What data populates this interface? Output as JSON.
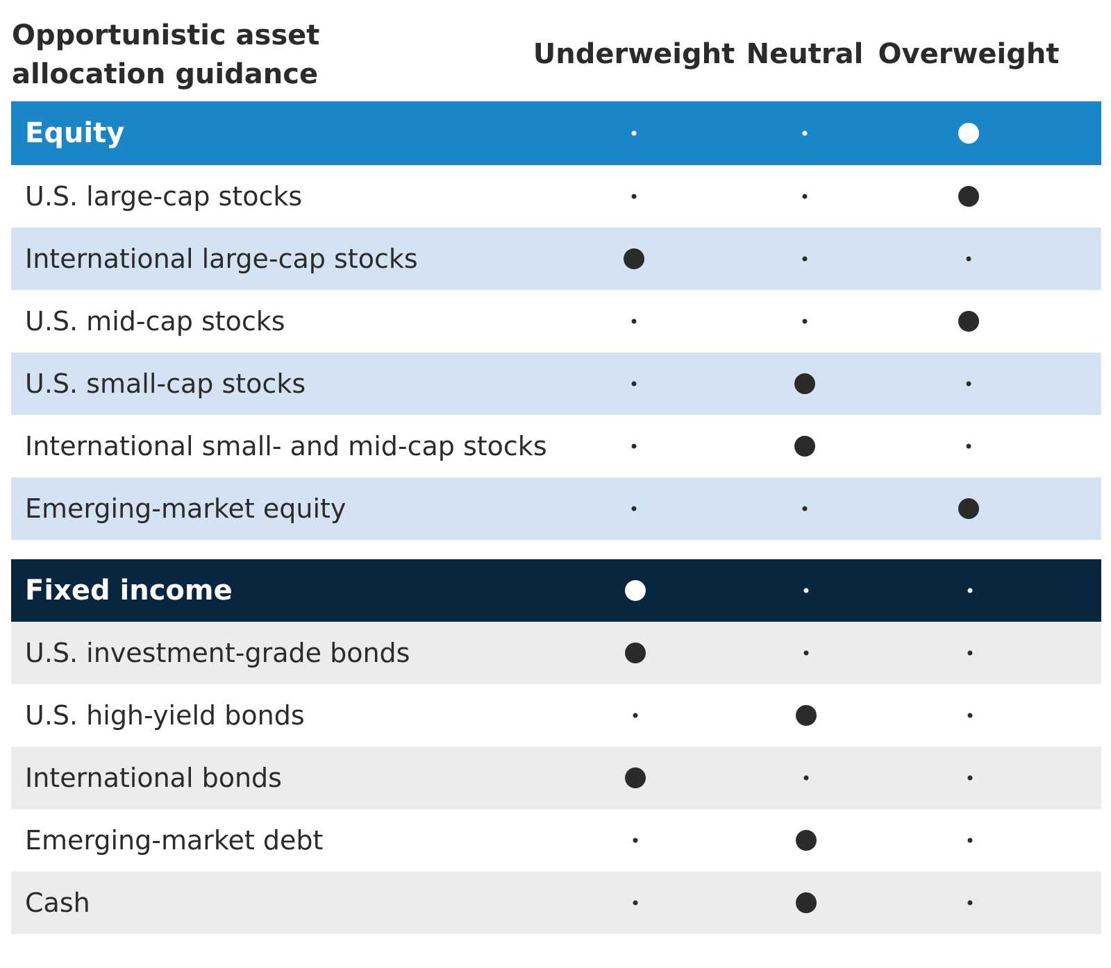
{
  "chart_data": {
    "type": "table",
    "title_lines": [
      "Opportunistic asset",
      "allocation guidance"
    ],
    "columns": [
      "Underweight",
      "Neutral",
      "Overweight"
    ],
    "colors": {
      "equity_header": "#1a86c7",
      "fixed_income_header": "#08263f",
      "equity_alt_row": "#d4e3f3",
      "fixed_income_alt_row": "#ececef",
      "dot_dark": "#2b2b2b",
      "dot_light": "#ffffff"
    },
    "sections": [
      {
        "name": "Equity",
        "rating": "Overweight",
        "rows": [
          {
            "label": "U.S. large-cap stocks",
            "rating": "Overweight"
          },
          {
            "label": "International large-cap stocks",
            "rating": "Underweight"
          },
          {
            "label": "U.S. mid-cap stocks",
            "rating": "Overweight"
          },
          {
            "label": "U.S. small-cap stocks",
            "rating": "Neutral"
          },
          {
            "label": "International small- and mid-cap stocks",
            "rating": "Neutral"
          },
          {
            "label": "Emerging-market equity",
            "rating": "Overweight"
          }
        ]
      },
      {
        "name": "Fixed income",
        "rating": "Underweight",
        "rows": [
          {
            "label": "U.S. investment-grade bonds",
            "rating": "Underweight"
          },
          {
            "label": "U.S. high-yield bonds",
            "rating": "Neutral"
          },
          {
            "label": "International bonds",
            "rating": "Underweight"
          },
          {
            "label": "Emerging-market debt",
            "rating": "Neutral"
          },
          {
            "label": "Cash",
            "rating": "Neutral"
          }
        ]
      }
    ]
  }
}
